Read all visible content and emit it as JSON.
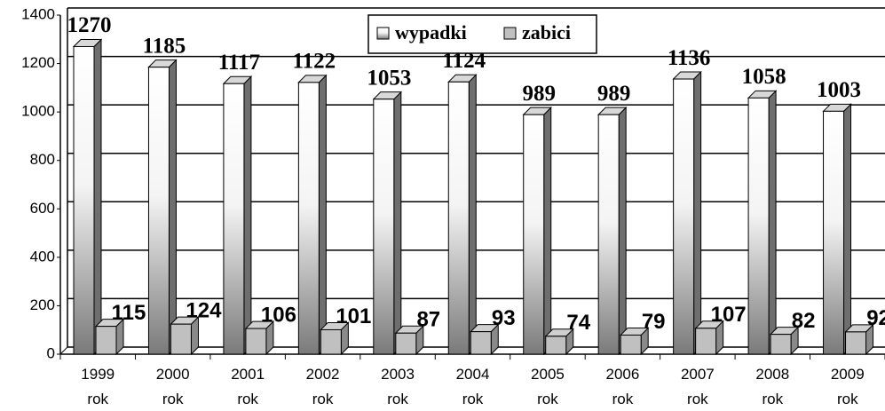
{
  "chart_data": {
    "type": "bar3d",
    "categories": [
      "1999 rok",
      "2000 rok",
      "2001 rok",
      "2002 rok",
      "2003 rok",
      "2004 rok",
      "2005 rok",
      "2006 rok",
      "2007 rok",
      "2008 rok",
      "2009 rok"
    ],
    "series": [
      {
        "name": "wypadki",
        "color": "#e8e8e8",
        "values": [
          1270,
          1185,
          1117,
          1122,
          1053,
          1124,
          989,
          989,
          1136,
          1058,
          1003
        ]
      },
      {
        "name": "zabici",
        "color": "#c0c0c0",
        "values": [
          115,
          124,
          106,
          101,
          87,
          93,
          74,
          79,
          107,
          82,
          92
        ]
      }
    ],
    "ylim": [
      0,
      1400
    ],
    "yticks": [
      0,
      200,
      400,
      600,
      800,
      1000,
      1200,
      1400
    ],
    "grid": true,
    "legend": "top"
  }
}
